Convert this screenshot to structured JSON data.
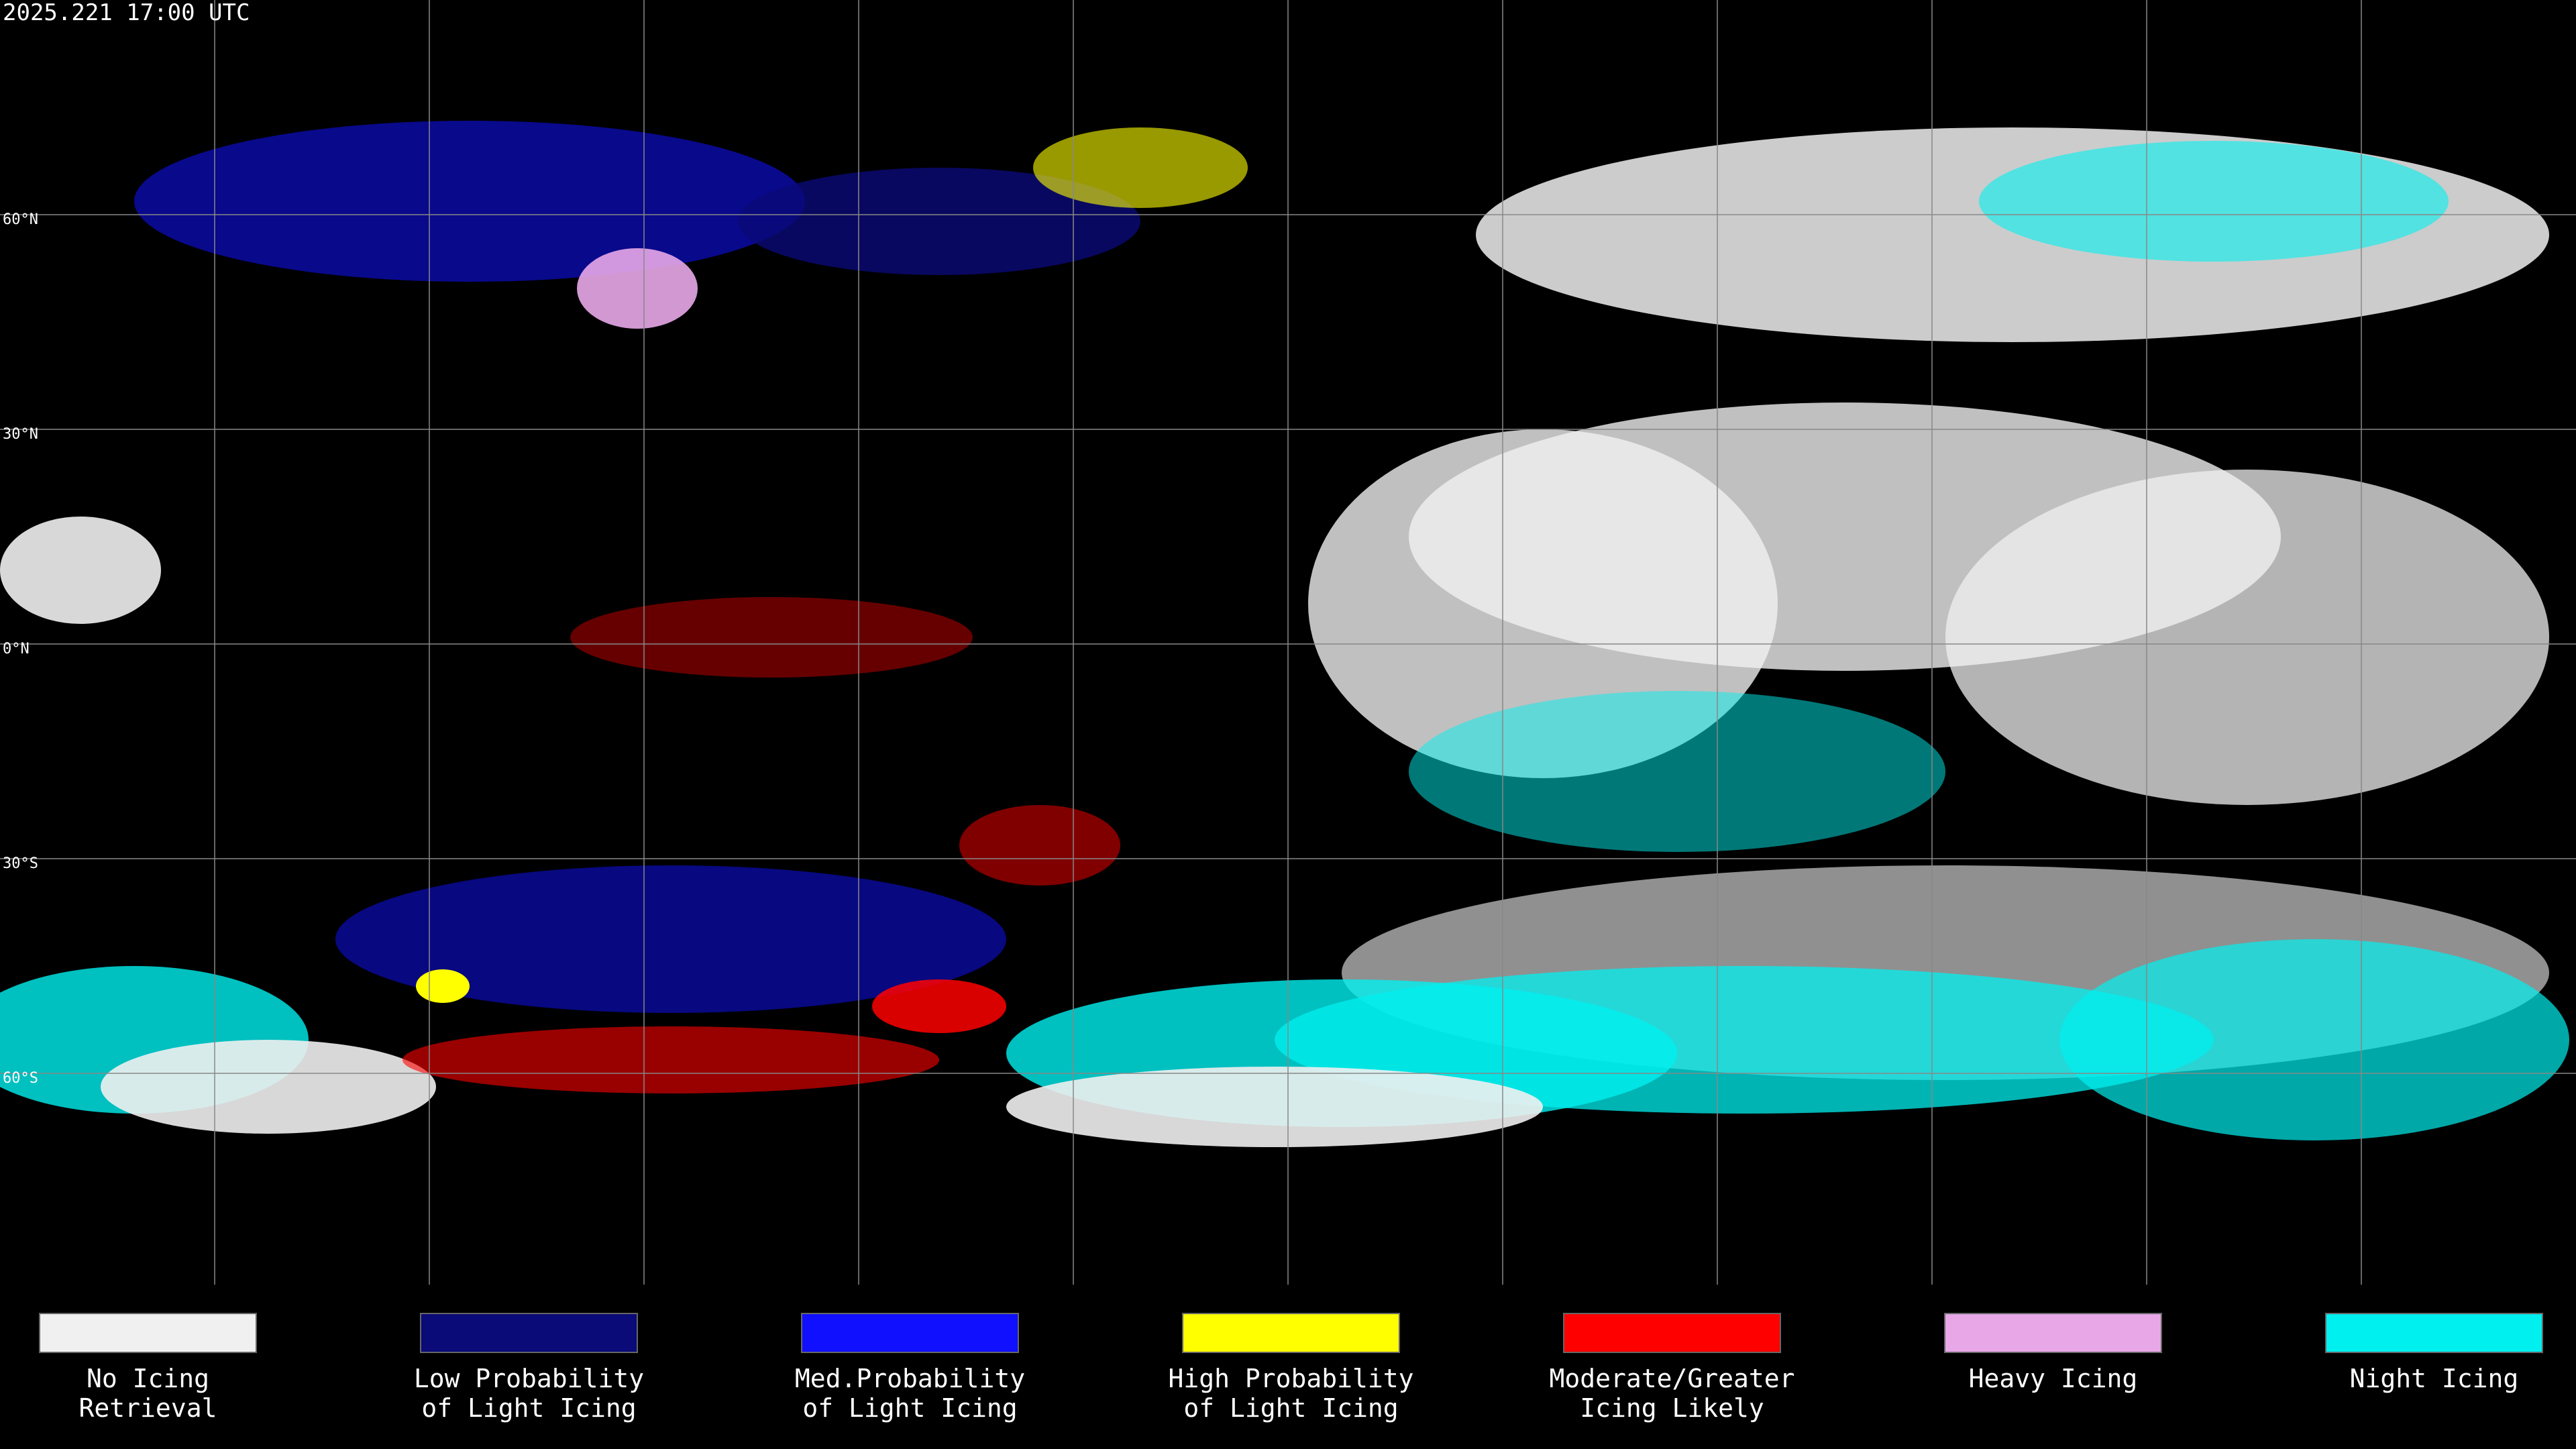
{
  "header": {
    "timestamp": "2025.221 17:00 UTC"
  },
  "grid": {
    "lat_labels": [
      "60°N",
      "30°N",
      "0°N",
      "30°S",
      "60°S"
    ]
  },
  "legend": {
    "items": [
      {
        "label_lines": [
          "No Icing",
          "Retrieval"
        ],
        "color": "#f0f0f0"
      },
      {
        "label_lines": [
          "Low Probability",
          "of Light Icing"
        ],
        "color": "#0a0a78"
      },
      {
        "label_lines": [
          "Med.Probability",
          "of Light Icing"
        ],
        "color": "#1010ff"
      },
      {
        "label_lines": [
          "High Probability",
          "of Light Icing"
        ],
        "color": "#ffff00"
      },
      {
        "label_lines": [
          "Moderate/Greater",
          "Icing Likely"
        ],
        "color": "#ff0000"
      },
      {
        "label_lines": [
          "Heavy Icing"
        ],
        "color": "#e8a8e8"
      },
      {
        "label_lines": [
          "Night Icing"
        ],
        "color": "#00f0f0"
      }
    ]
  }
}
